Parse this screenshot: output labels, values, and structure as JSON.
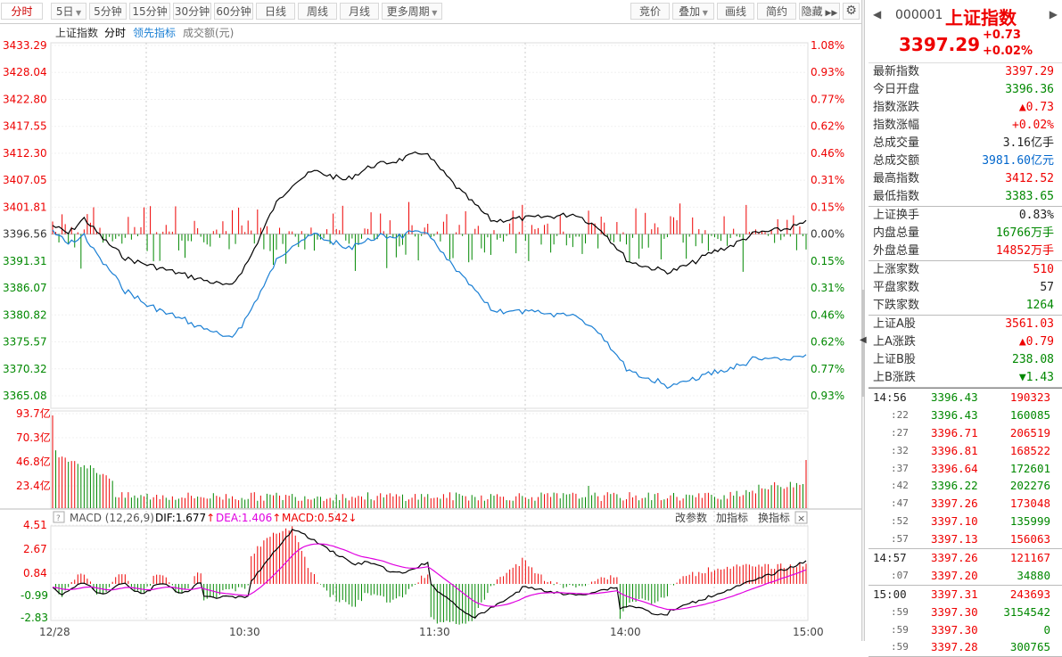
{
  "toolbar": {
    "tabs": [
      "分时",
      "5日",
      "5分钟",
      "15分钟",
      "30分钟",
      "60分钟",
      "日线",
      "周线",
      "月线",
      "更多周期"
    ],
    "right": [
      "竞价",
      "叠加",
      "画线",
      "简约",
      "隐藏"
    ]
  },
  "legend": {
    "name": "上证指数",
    "mode": "分时",
    "lead": "领先指标",
    "amount": "成交额(元)"
  },
  "price_axis": [
    "3433.29",
    "3428.04",
    "3422.80",
    "3417.55",
    "3412.30",
    "3407.05",
    "3401.81",
    "3396.56",
    "3391.31",
    "3386.07",
    "3380.82",
    "3375.57",
    "3370.32",
    "3365.08"
  ],
  "pct_axis": [
    "1.08%",
    "0.93%",
    "0.77%",
    "0.62%",
    "0.46%",
    "0.31%",
    "0.15%",
    "0.00%",
    "0.15%",
    "0.31%",
    "0.46%",
    "0.62%",
    "0.77%",
    "0.93%"
  ],
  "vol_axis": [
    "93.7亿",
    "70.3亿",
    "46.8亿",
    "23.4亿"
  ],
  "macd_axis": [
    "4.51",
    "2.67",
    "0.84",
    "-0.99",
    "-2.83"
  ],
  "time_axis": [
    "12/28",
    "10:30",
    "11:30",
    "14:00",
    "15:00"
  ],
  "macd": {
    "title": "MACD (12,26,9)",
    "dif": "DIF:1.677",
    "dea": "DEA:1.406",
    "macd": "MACD:0.542",
    "links": [
      "改参数",
      "加指标",
      "换指标"
    ],
    "close": "×"
  },
  "colors": {
    "up": "#e00000",
    "down": "#008000",
    "price": "#000000",
    "lead": "#1a7fd4",
    "dea": "#e000e0"
  },
  "header": {
    "code": "000001",
    "name": "上证指数",
    "price": "3397.29",
    "change": "+0.73",
    "pct": "+0.02%"
  },
  "quote": [
    [
      {
        "label": "最新指数",
        "value": "3397.29",
        "color": "red"
      },
      {
        "label": "今日开盘",
        "value": "3396.36",
        "color": "green"
      },
      {
        "label": "指数涨跌",
        "value": "▲0.73",
        "color": "red"
      },
      {
        "label": "指数涨幅",
        "value": "+0.02%",
        "color": "red"
      },
      {
        "label": "总成交量",
        "value": "3.16亿手",
        "color": "blk"
      },
      {
        "label": "总成交额",
        "value": "3981.60亿元",
        "color": "blue"
      },
      {
        "label": "最高指数",
        "value": "3412.52",
        "color": "red"
      },
      {
        "label": "最低指数",
        "value": "3383.65",
        "color": "green"
      }
    ],
    [
      {
        "label": "上证换手",
        "value": "0.83%",
        "color": "blk"
      },
      {
        "label": "内盘总量",
        "value": "16766万手",
        "color": "green"
      },
      {
        "label": "外盘总量",
        "value": "14852万手",
        "color": "red"
      }
    ],
    [
      {
        "label": "上涨家数",
        "value": "510",
        "color": "red"
      },
      {
        "label": "平盘家数",
        "value": "57",
        "color": "blk"
      },
      {
        "label": "下跌家数",
        "value": "1264",
        "color": "green"
      }
    ],
    [
      {
        "label": "上证A股",
        "value": "3561.03",
        "color": "red"
      },
      {
        "label": "上A涨跌",
        "value": "▲0.79",
        "color": "red"
      },
      {
        "label": "上证B股",
        "value": "238.08",
        "color": "green"
      },
      {
        "label": "上B涨跌",
        "value": "▼1.43",
        "color": "green"
      }
    ]
  ],
  "ticks": [
    [
      {
        "t": "14:56",
        "p": "3396.43",
        "v": "190323",
        "pc": "green",
        "vc": "red"
      },
      {
        "t": ":22",
        "p": "3396.43",
        "v": "160085",
        "pc": "green",
        "vc": "green"
      },
      {
        "t": ":27",
        "p": "3396.71",
        "v": "206519",
        "pc": "red",
        "vc": "red"
      },
      {
        "t": ":32",
        "p": "3396.81",
        "v": "168522",
        "pc": "red",
        "vc": "red"
      },
      {
        "t": ":37",
        "p": "3396.64",
        "v": "172601",
        "pc": "red",
        "vc": "green"
      },
      {
        "t": ":42",
        "p": "3396.22",
        "v": "202276",
        "pc": "green",
        "vc": "green"
      },
      {
        "t": ":47",
        "p": "3397.26",
        "v": "173048",
        "pc": "red",
        "vc": "red"
      },
      {
        "t": ":52",
        "p": "3397.10",
        "v": "135999",
        "pc": "red",
        "vc": "green"
      },
      {
        "t": ":57",
        "p": "3397.13",
        "v": "156063",
        "pc": "red",
        "vc": "red"
      }
    ],
    [
      {
        "t": "14:57",
        "p": "3397.26",
        "v": "121167",
        "pc": "red",
        "vc": "red"
      },
      {
        "t": ":07",
        "p": "3397.20",
        "v": "34880",
        "pc": "red",
        "vc": "green"
      }
    ],
    [
      {
        "t": "15:00",
        "p": "3397.31",
        "v": "243693",
        "pc": "red",
        "vc": "red"
      },
      {
        "t": ":59",
        "p": "3397.30",
        "v": "3154542",
        "pc": "red",
        "vc": "green"
      },
      {
        "t": ":59",
        "p": "3397.30",
        "v": "0",
        "pc": "red",
        "vc": "green"
      },
      {
        "t": ":59",
        "p": "3397.28",
        "v": "300765",
        "pc": "red",
        "vc": "green"
      }
    ]
  ]
}
